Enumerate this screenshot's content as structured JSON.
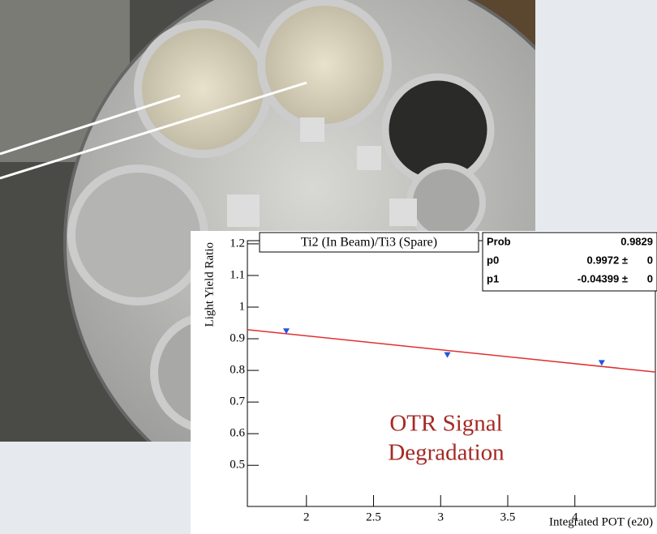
{
  "chart_data": {
    "type": "scatter",
    "title": "Ti2 (In Beam)/Ti3 (Spare)",
    "x_label": "Integrated POT (e20)",
    "y_label": "Light Yield Ratio",
    "x": [
      1.85,
      3.05,
      4.2
    ],
    "values": [
      0.925,
      0.85,
      0.825
    ],
    "color": "#2255dd",
    "fit_color": "#e03030",
    "xlim": [
      1.56,
      4.6
    ],
    "ylim": [
      0.37,
      1.21
    ],
    "xticks": [
      2,
      2.5,
      3,
      3.5,
      4
    ],
    "yticks": [
      0.5,
      0.6,
      0.7,
      0.8,
      0.9,
      1,
      1.1,
      1.2
    ],
    "stats": [
      {
        "name": "Prob",
        "value": 0.9829,
        "label": "0.9829"
      },
      {
        "name": "p0",
        "value": 0.9972,
        "label": "0.9972 ±",
        "error": 0
      },
      {
        "name": "p1",
        "value": -0.04399,
        "label": "-0.04399 ±",
        "error": 0
      }
    ],
    "annotation": [
      "OTR Signal",
      "Degradation"
    ]
  }
}
